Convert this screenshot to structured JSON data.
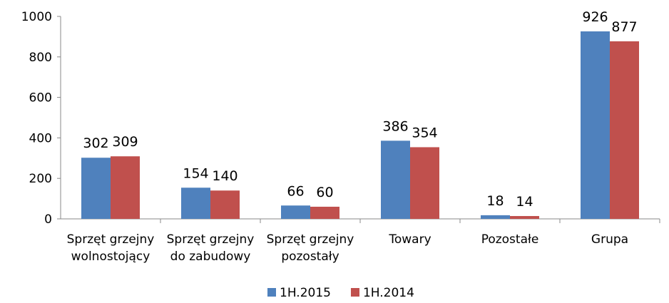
{
  "chart_data": {
    "type": "bar",
    "categories": [
      "Sprzęt grzejny\nwolnostojący",
      "Sprzęt grzejny\ndo zabudowy",
      "Sprzęt grzejny\npozostały",
      "Towary",
      "Pozostałe",
      "Grupa"
    ],
    "series": [
      {
        "name": "1H.2015",
        "color": "#4f81bd",
        "values": [
          302,
          154,
          66,
          386,
          18,
          926
        ]
      },
      {
        "name": "1H.2014",
        "color": "#c0504d",
        "values": [
          309,
          140,
          60,
          354,
          14,
          877
        ]
      }
    ],
    "ylim": [
      0,
      1000
    ],
    "yticks": [
      0,
      200,
      400,
      600,
      800,
      1000
    ],
    "grid": false,
    "legend": "bottom"
  }
}
